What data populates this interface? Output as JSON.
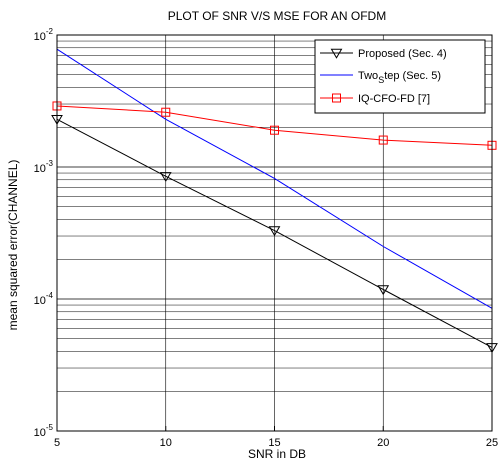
{
  "colors": {
    "background": "#ffffff",
    "grid": "#000000",
    "proposed": "#000000",
    "twostep": "#0000ff",
    "iqcfo": "#ff0000"
  },
  "chart_data": {
    "type": "line",
    "title": "PLOT OF SNR V/S MSE FOR AN OFDM",
    "xlabel": "SNR in DB",
    "ylabel": "mean squared error(CHANNEL)",
    "xlim": [
      5,
      25
    ],
    "ylim": [
      1e-05,
      0.01
    ],
    "yscale": "log",
    "grid": true,
    "legend_position": "top-right",
    "x_ticks": [
      "5",
      "10",
      "15",
      "20",
      "25"
    ],
    "y_ticks": [
      {
        "base": "10",
        "exp": "-5"
      },
      {
        "base": "10",
        "exp": "-4"
      },
      {
        "base": "10",
        "exp": "-3"
      },
      {
        "base": "10",
        "exp": "-2"
      }
    ],
    "series": [
      {
        "name": "Proposed (Sec. 4)",
        "color": "#000000",
        "marker": "triangle-down",
        "x": [
          5,
          10,
          15,
          20,
          25
        ],
        "y": [
          0.0023,
          0.00085,
          0.00033,
          0.000118,
          4.3e-05
        ]
      },
      {
        "name_base": "Two",
        "name_sub": "S",
        "name_rest": "tep (Sec. 5)",
        "color": "#0000ff",
        "marker": "none",
        "x": [
          5,
          10,
          15,
          20,
          25
        ],
        "y": [
          0.0078,
          0.0023,
          0.00082,
          0.00025,
          8.5e-05
        ]
      },
      {
        "name": "IQ-CFO-FD [7]",
        "color": "#ff0000",
        "marker": "square",
        "x": [
          5,
          10,
          15,
          20,
          25
        ],
        "y": [
          0.0029,
          0.0026,
          0.0019,
          0.0016,
          0.00146
        ]
      }
    ]
  }
}
